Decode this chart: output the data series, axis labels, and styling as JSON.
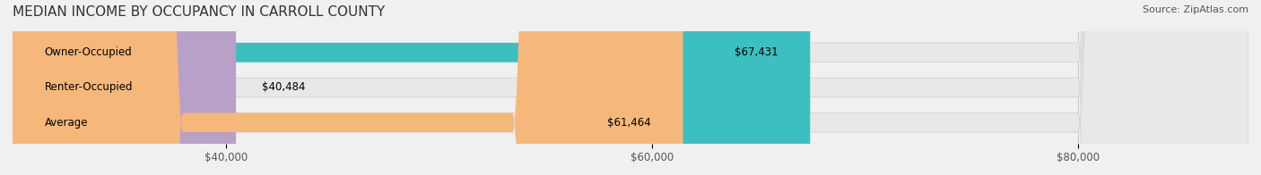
{
  "title": "MEDIAN INCOME BY OCCUPANCY IN CARROLL COUNTY",
  "source": "Source: ZipAtlas.com",
  "categories": [
    "Owner-Occupied",
    "Renter-Occupied",
    "Average"
  ],
  "values": [
    67431,
    40484,
    61464
  ],
  "bar_colors": [
    "#3bbfbf",
    "#b8a0c8",
    "#f5b87a"
  ],
  "bar_labels": [
    "$67,431",
    "$40,484",
    "$61,464"
  ],
  "xlim_min": 30000,
  "xlim_max": 88000,
  "xticks": [
    40000,
    60000,
    80000
  ],
  "xtick_labels": [
    "$40,000",
    "$60,000",
    "$80,000"
  ],
  "background_color": "#f0f0f0",
  "bar_bg_color": "#e8e8e8",
  "title_fontsize": 11,
  "source_fontsize": 8,
  "label_fontsize": 8.5,
  "tick_fontsize": 8.5
}
